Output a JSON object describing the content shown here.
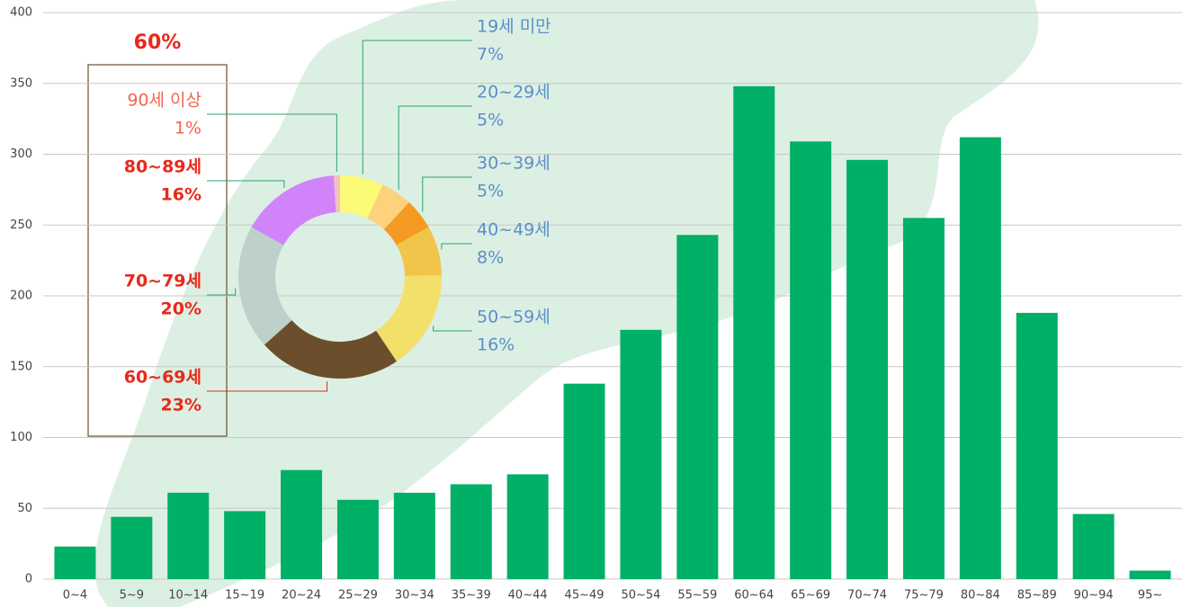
{
  "chart_data": [
    {
      "type": "bar",
      "categories": [
        "0~4",
        "5~9",
        "10~14",
        "15~19",
        "20~24",
        "25~29",
        "30~34",
        "35~39",
        "40~44",
        "45~49",
        "50~54",
        "55~59",
        "60~64",
        "65~69",
        "70~74",
        "75~79",
        "80~84",
        "85~89",
        "90~94",
        "95~"
      ],
      "values": [
        23,
        44,
        61,
        48,
        77,
        56,
        61,
        67,
        74,
        138,
        176,
        243,
        348,
        309,
        296,
        255,
        312,
        188,
        46,
        6
      ],
      "color": "#00b066",
      "ylim": [
        0,
        400
      ],
      "yticks": [
        0,
        50,
        100,
        150,
        200,
        250,
        300,
        350,
        400
      ],
      "grid": true
    },
    {
      "type": "donut",
      "categories": [
        "19세 미만",
        "20~29세",
        "30~39세",
        "40~49세",
        "50~59세",
        "60~69세",
        "70~79세",
        "80~89세",
        "90세 이상"
      ],
      "values": [
        7,
        5,
        5,
        8,
        16,
        23,
        20,
        16,
        1
      ],
      "value_labels": [
        "7%",
        "5%",
        "5%",
        "8%",
        "16%",
        "23%",
        "20%",
        "16%",
        "1%"
      ],
      "colors": [
        "#fbfb78",
        "#fdd27a",
        "#f59a23",
        "#f0c54a",
        "#f3e06a",
        "#6b4f2c",
        "#bdd0ca",
        "#d184f9",
        "#f2c0c0"
      ],
      "annotation": "60%"
    }
  ]
}
